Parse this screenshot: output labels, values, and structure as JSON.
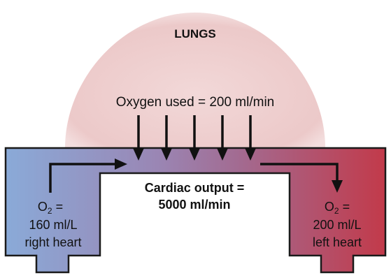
{
  "lungs": {
    "title": "LUNGS",
    "oxygen_used": "Oxygen used = 200 ml/min"
  },
  "cardiac": {
    "line1": "Cardiac output =",
    "line2": "5000 ml/min"
  },
  "right_heart": {
    "line1_prefix": "O",
    "line1_sub": "2",
    "line1_suffix": " =",
    "line2": "160 ml/L",
    "line3": "right heart"
  },
  "left_heart": {
    "line1_prefix": "O",
    "line1_sub": "2",
    "line1_suffix": " =",
    "line2": "200 ml/L",
    "line3": "left heart"
  },
  "colors": {
    "lungs_fill": "#efcfcf",
    "lungs_edge": "#f6e4e4",
    "tube_left": "#8aaad8",
    "tube_mid": "#a07aa6",
    "tube_right": "#c23a4a",
    "outline": "#1a1a1a"
  },
  "icons": [
    "arrow-down-icon",
    "arrow-right-icon"
  ]
}
